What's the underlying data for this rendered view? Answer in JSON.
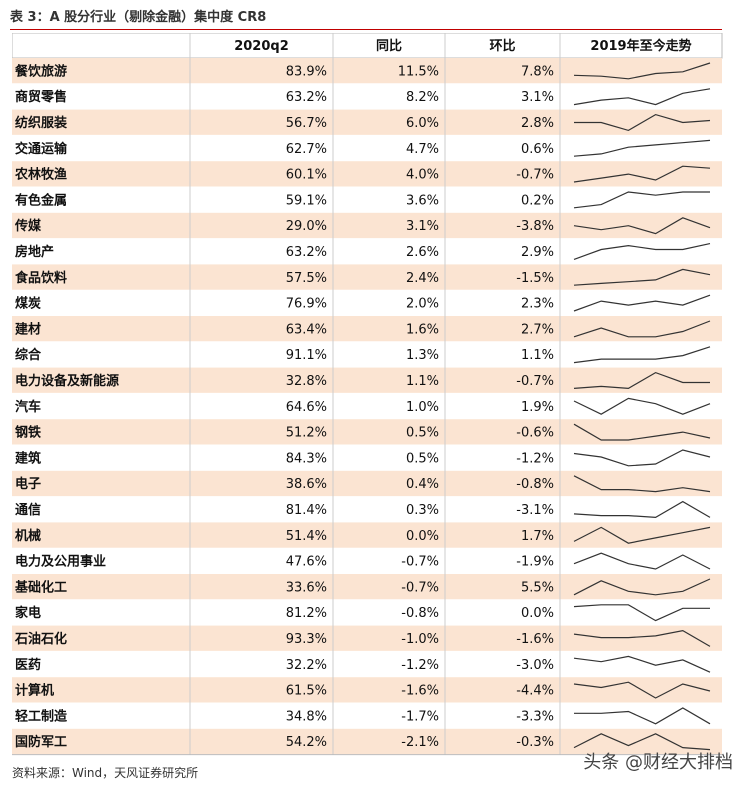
{
  "title": "表 3：A 股分行业（剔除金融）集中度 CR8",
  "table": {
    "header": [
      "",
      "2020q2",
      "同比",
      "环比",
      "2019年至今走势"
    ],
    "rows": [
      [
        "餐饮旅游",
        "83.9%",
        "11.5%",
        "7.8%"
      ],
      [
        "商贸零售",
        "63.2%",
        "8.2%",
        "3.1%"
      ],
      [
        "纺织服装",
        "56.7%",
        "6.0%",
        "2.8%"
      ],
      [
        "交通运输",
        "62.7%",
        "4.7%",
        "0.6%"
      ],
      [
        "农林牧渔",
        "60.1%",
        "4.0%",
        "-0.7%"
      ],
      [
        "有色金属",
        "59.1%",
        "3.6%",
        "0.2%"
      ],
      [
        "传媒",
        "29.0%",
        "3.1%",
        "-3.8%"
      ],
      [
        "房地产",
        "63.2%",
        "2.6%",
        "2.9%"
      ],
      [
        "食品饮料",
        "57.5%",
        "2.4%",
        "-1.5%"
      ],
      [
        "煤炭",
        "76.9%",
        "2.0%",
        "2.3%"
      ],
      [
        "建材",
        "63.4%",
        "1.6%",
        "2.7%"
      ],
      [
        "综合",
        "91.1%",
        "1.3%",
        "1.1%"
      ],
      [
        "电力设备及新能源",
        "32.8%",
        "1.1%",
        "-0.7%"
      ],
      [
        "汽车",
        "64.6%",
        "1.0%",
        "1.9%"
      ],
      [
        "钢铁",
        "51.2%",
        "0.5%",
        "-0.6%"
      ],
      [
        "建筑",
        "84.3%",
        "0.5%",
        "-1.2%"
      ],
      [
        "电子",
        "38.6%",
        "0.4%",
        "-0.8%"
      ],
      [
        "通信",
        "81.4%",
        "0.3%",
        "-3.1%"
      ],
      [
        "机械",
        "51.4%",
        "0.0%",
        "1.7%"
      ],
      [
        "电力及公用事业",
        "47.6%",
        "-0.7%",
        "-1.9%"
      ],
      [
        "基础化工",
        "33.6%",
        "-0.7%",
        "5.5%"
      ],
      [
        "家电",
        "81.2%",
        "-0.8%",
        "0.0%"
      ],
      [
        "石油石化",
        "93.3%",
        "-1.0%",
        "-1.6%"
      ],
      [
        "医药",
        "32.2%",
        "-1.2%",
        "-3.0%"
      ],
      [
        "计算机",
        "61.5%",
        "-1.6%",
        "-4.4%"
      ],
      [
        "轻工制造",
        "34.8%",
        "-1.7%",
        "-3.3%"
      ],
      [
        "国防军工",
        "54.2%",
        "-2.1%",
        "-0.3%"
      ]
    ],
    "trends": [
      [
        3,
        2.5,
        1,
        4,
        5,
        10
      ],
      [
        1,
        3,
        4,
        1,
        6,
        8
      ],
      [
        5,
        5,
        1,
        9,
        5,
        6
      ],
      [
        1,
        2,
        5,
        6,
        7,
        8
      ],
      [
        2,
        4,
        6,
        3,
        10,
        9
      ],
      [
        1,
        2,
        6,
        5,
        6,
        6
      ],
      [
        5,
        3,
        5,
        1,
        9,
        4
      ],
      [
        1,
        6,
        8,
        6,
        6,
        9
      ],
      [
        1,
        2,
        3,
        4,
        10,
        7
      ],
      [
        1,
        6,
        4,
        6,
        4,
        9
      ],
      [
        1,
        6,
        1,
        1,
        4,
        10
      ],
      [
        1,
        3,
        3,
        3,
        5,
        10
      ],
      [
        1,
        2,
        1,
        9,
        4,
        4
      ],
      [
        6,
        1,
        7,
        5,
        1,
        5
      ],
      [
        9,
        1,
        1,
        3,
        5,
        2
      ],
      [
        8,
        6,
        1,
        2,
        10,
        6
      ],
      [
        9,
        2,
        2,
        1,
        3,
        1
      ],
      [
        3,
        2,
        2,
        1,
        10,
        1
      ],
      [
        2,
        10,
        1,
        4,
        7,
        10
      ],
      [
        4,
        10,
        4,
        1,
        9,
        1
      ],
      [
        1,
        9,
        3,
        1,
        3,
        10
      ],
      [
        9,
        10,
        10,
        1,
        8,
        8
      ],
      [
        8,
        6,
        6,
        7,
        10,
        1
      ],
      [
        9,
        7,
        10,
        5,
        8,
        1
      ],
      [
        9,
        7,
        10,
        1,
        9,
        5
      ],
      [
        7,
        7,
        8,
        1,
        10,
        1
      ],
      [
        2,
        9,
        3,
        9,
        2,
        1
      ]
    ]
  },
  "source": "资料来源：Wind，天风证券研究所",
  "watermark": "头条 @财经大排档"
}
